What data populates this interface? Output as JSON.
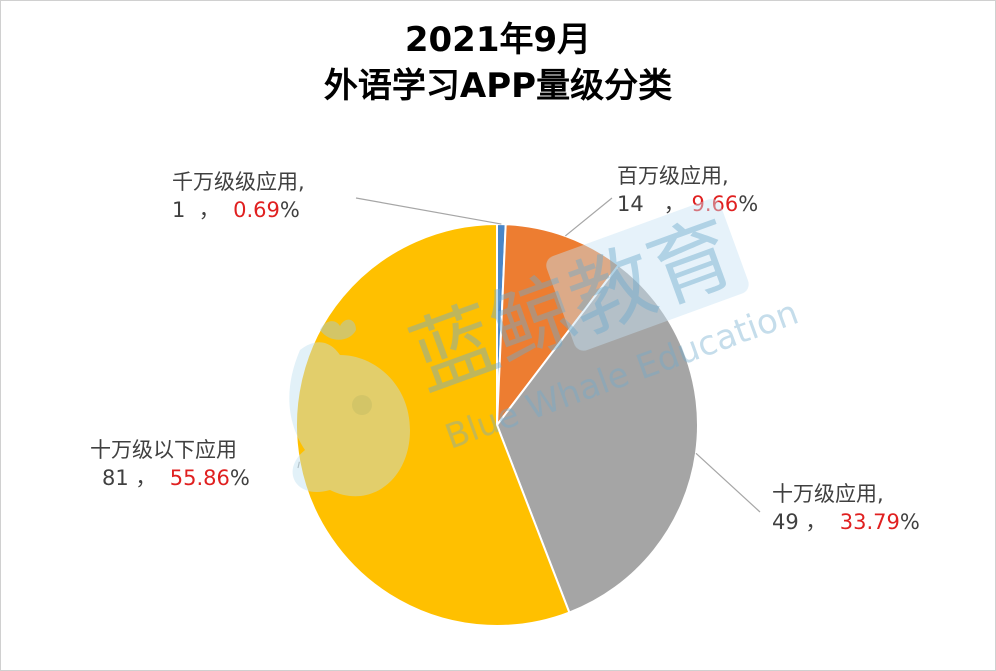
{
  "chart_data": {
    "type": "pie",
    "title": "2021年9月",
    "subtitle": "外语学习APP量级分类",
    "slices": [
      {
        "name": "千万级级应用,",
        "count": 1,
        "sep": "，",
        "percent": "0.69",
        "value": 0.69,
        "color": "#4a86c8"
      },
      {
        "name": "百万级应用,",
        "count": 14,
        "sep": "，",
        "percent": "9.66",
        "value": 9.66,
        "color": "#ed7d31"
      },
      {
        "name": "十万级应用,",
        "count": 49,
        "sep": "，",
        "percent": "33.79",
        "value": 33.79,
        "color": "#a5a5a5"
      },
      {
        "name": "十万级以下应用",
        "count": 81,
        "sep": "，",
        "percent": "55.86",
        "value": 55.86,
        "color": "#ffc000"
      }
    ],
    "percent_sign": "%",
    "legend": "none"
  },
  "watermark": {
    "brand_cn_1": "蓝",
    "brand_cn_2": "鲸",
    "brand_cn_3": "教",
    "brand_cn_4": "育",
    "brand_en": "Blue Whale Education"
  }
}
